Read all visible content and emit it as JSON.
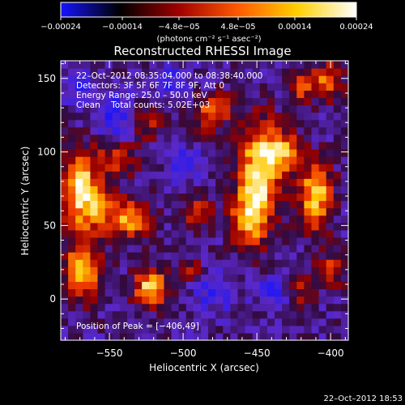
{
  "chart_data": {
    "type": "heatmap",
    "title": "Reconstructed RHESSI Image",
    "xlabel": "Heliocentric X (arcsec)",
    "ylabel": "Heliocentric Y (arcsec)",
    "xlim": [
      -583,
      -388
    ],
    "ylim": [
      -28,
      162
    ],
    "xticks": [
      -550,
      -500,
      -450,
      -400
    ],
    "xtick_labels": [
      "−550",
      "−500",
      "−450",
      "−400"
    ],
    "yticks": [
      0,
      50,
      100,
      150
    ],
    "ytick_labels": [
      "0",
      "50",
      "100",
      "150"
    ],
    "colorbar": {
      "min": -0.00024,
      "max": 0.00024,
      "ticks": [
        -0.00024,
        -0.00014,
        -4.8e-05,
        4.8e-05,
        0.00014,
        0.00024
      ],
      "tick_labels": [
        "−0.00024",
        "−0.00014",
        "−4.8e−05",
        "4.8e−05",
        "0.00014",
        "0.00024"
      ],
      "unit_label": "(photons cm⁻² s⁻¹ asec⁻²)",
      "colors": [
        "#1414ff",
        "#000000",
        "#a00000",
        "#ff5a00",
        "#ffd000",
        "#ffffff"
      ]
    },
    "annotations": [
      "22–Oct–2012 08:35:04.000 to 08:38:40.000",
      "Detectors: 3F 5F 6F 7F 8F 9F, Att 0",
      "Energy Range: 25.0 – 50.0 keV",
      "Clean    Total counts: 5.02E+03"
    ],
    "peak_label": "Position of Peak = [−406,49]",
    "timestamp": "22–Oct–2012 18:53",
    "blobs": [
      {
        "x": -570,
        "y": 75,
        "amp": 1.0,
        "sx": 9,
        "sy": 18
      },
      {
        "x": -568,
        "y": 20,
        "amp": 0.85,
        "sx": 9,
        "sy": 14
      },
      {
        "x": -555,
        "y": 60,
        "amp": 0.55,
        "sx": 8,
        "sy": 10
      },
      {
        "x": -535,
        "y": 55,
        "amp": 0.75,
        "sx": 9,
        "sy": 9
      },
      {
        "x": -545,
        "y": 95,
        "amp": 0.5,
        "sx": 10,
        "sy": 8
      },
      {
        "x": -522,
        "y": 8,
        "amp": 0.95,
        "sx": 8,
        "sy": 9
      },
      {
        "x": -525,
        "y": 120,
        "amp": 0.45,
        "sx": 8,
        "sy": 8
      },
      {
        "x": -490,
        "y": 60,
        "amp": 0.55,
        "sx": 7,
        "sy": 8
      },
      {
        "x": -485,
        "y": 125,
        "amp": 0.45,
        "sx": 7,
        "sy": 8
      },
      {
        "x": -475,
        "y": 130,
        "amp": 0.4,
        "sx": 7,
        "sy": 8
      },
      {
        "x": -448,
        "y": 90,
        "amp": 1.0,
        "sx": 10,
        "sy": 22
      },
      {
        "x": -455,
        "y": 55,
        "amp": 0.8,
        "sx": 9,
        "sy": 14
      },
      {
        "x": -430,
        "y": 100,
        "amp": 0.65,
        "sx": 8,
        "sy": 10
      },
      {
        "x": -410,
        "y": 70,
        "amp": 0.9,
        "sx": 8,
        "sy": 16
      },
      {
        "x": -402,
        "y": 148,
        "amp": 0.7,
        "sx": 7,
        "sy": 9
      },
      {
        "x": -420,
        "y": 145,
        "amp": 0.55,
        "sx": 6,
        "sy": 8
      },
      {
        "x": -400,
        "y": 20,
        "amp": 0.5,
        "sx": 7,
        "sy": 8
      },
      {
        "x": -420,
        "y": 5,
        "amp": 0.4,
        "sx": 7,
        "sy": 7
      },
      {
        "x": -495,
        "y": 20,
        "amp": 0.35,
        "sx": 6,
        "sy": 6
      }
    ],
    "dips": [
      {
        "x": -545,
        "y": 125,
        "amp": 0.55,
        "sx": 10,
        "sy": 10
      },
      {
        "x": -510,
        "y": 150,
        "amp": 0.5,
        "sx": 9,
        "sy": 7
      },
      {
        "x": -500,
        "y": 92,
        "amp": 0.45,
        "sx": 8,
        "sy": 8
      },
      {
        "x": -478,
        "y": 5,
        "amp": 0.5,
        "sx": 9,
        "sy": 9
      },
      {
        "x": -440,
        "y": 5,
        "amp": 0.45,
        "sx": 8,
        "sy": 7
      },
      {
        "x": -570,
        "y": 145,
        "amp": 0.4,
        "sx": 8,
        "sy": 8
      }
    ]
  }
}
